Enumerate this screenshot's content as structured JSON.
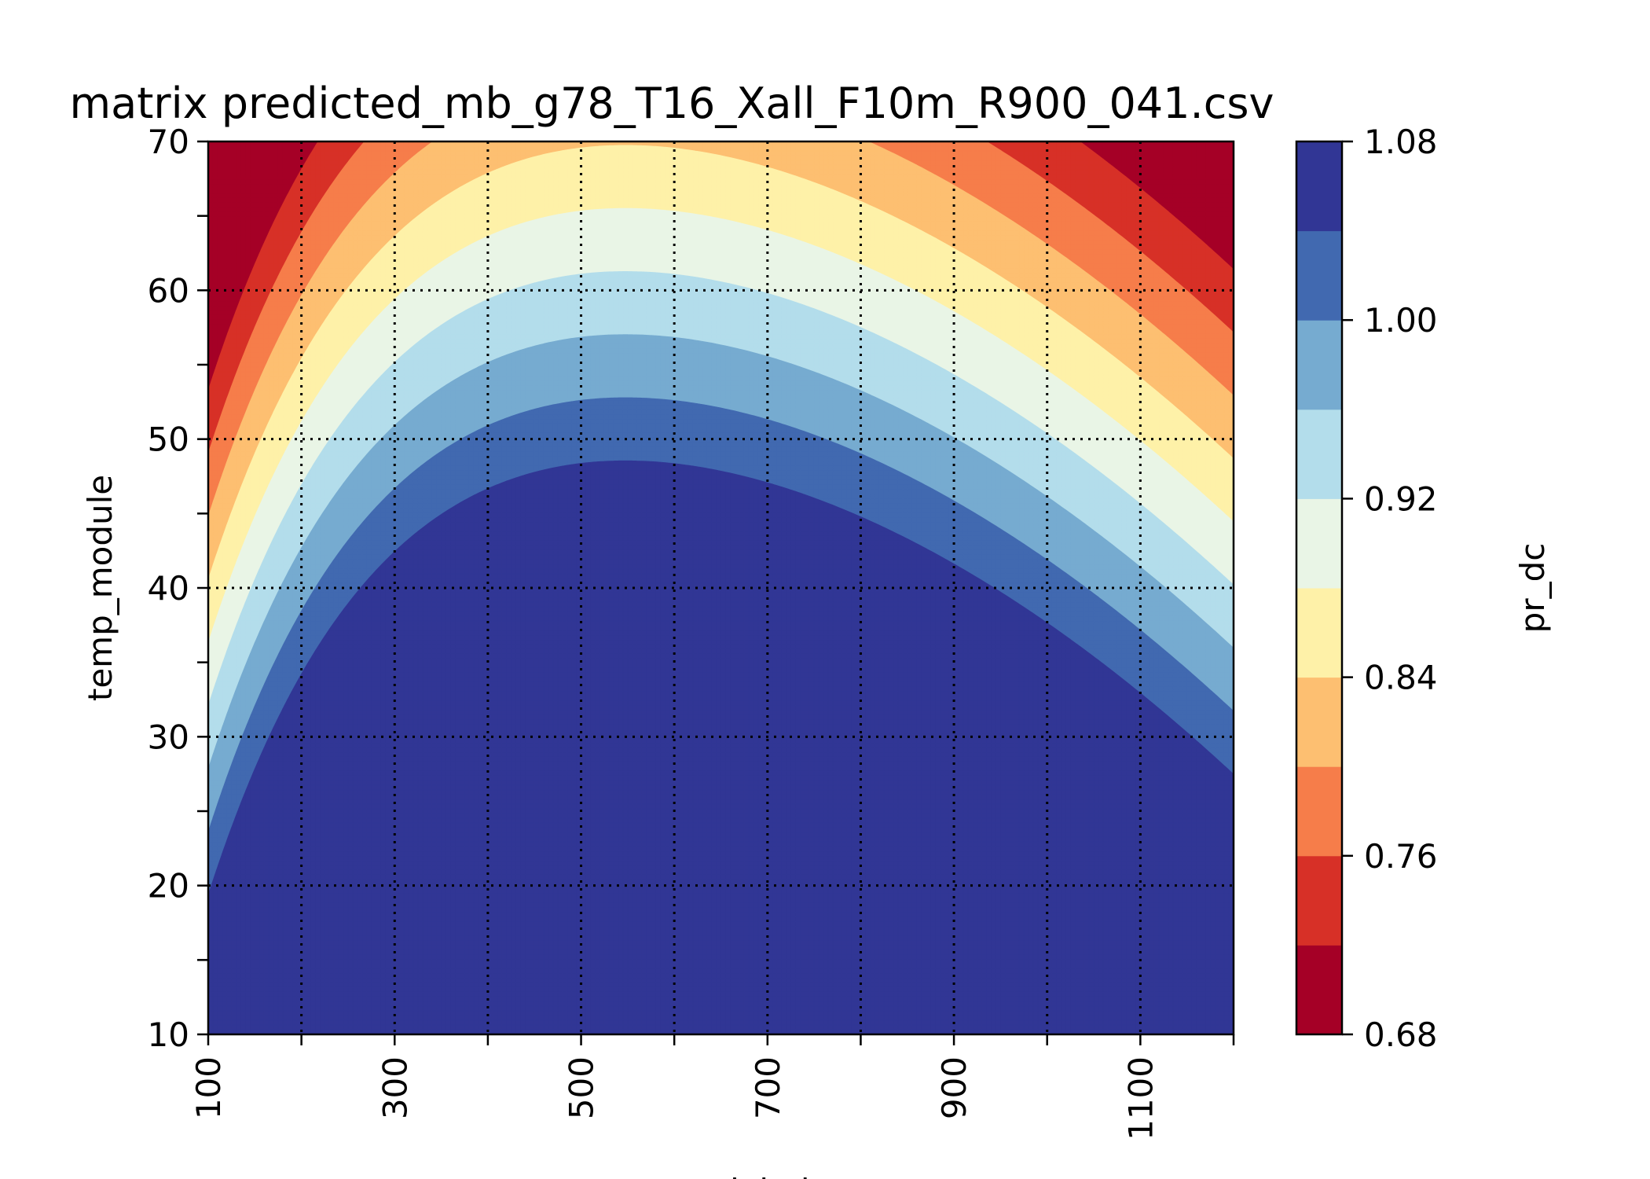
{
  "chart_data": {
    "type": "contour",
    "title": "matrix predicted_mb_g78_T16_Xall_F10m_R900_041.csv",
    "xlabel": "poa_global",
    "ylabel": "temp_module",
    "colorbar_label": "pr_dc",
    "xlim": [
      100,
      1200
    ],
    "ylim": [
      10,
      70
    ],
    "x_ticks": [
      100,
      300,
      500,
      700,
      900,
      1100
    ],
    "x_minor_ticks": [
      200,
      400,
      600,
      800,
      1000,
      1200
    ],
    "y_ticks": [
      10,
      20,
      30,
      40,
      50,
      60,
      70
    ],
    "y_minor_ticks": [
      15,
      25,
      35,
      45,
      55,
      65
    ],
    "grid": true,
    "colorbar_ticks": [
      "0.68",
      "0.76",
      "0.84",
      "0.92",
      "1.00",
      "1.08"
    ],
    "levels": [
      0.68,
      0.72,
      0.76,
      0.8,
      0.84,
      0.88,
      0.92,
      0.96,
      1.0,
      1.04,
      1.08
    ],
    "level_colors": [
      "#a50026",
      "#d73027",
      "#f67d4a",
      "#fdbf71",
      "#fef1a8",
      "#e9f5e6",
      "#b3ddeb",
      "#76abd0",
      "#4169b0",
      "#313695"
    ],
    "grid_x": [
      100,
      200,
      300,
      400,
      500,
      600,
      700,
      800,
      900,
      1000,
      1100,
      1200
    ],
    "grid_y": [
      10,
      20,
      30,
      40,
      50,
      60,
      70
    ]
  }
}
